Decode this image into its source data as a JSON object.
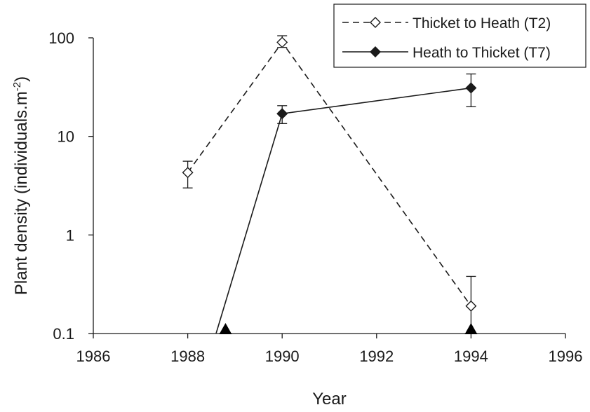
{
  "chart_data": {
    "type": "line",
    "xlabel": "Year",
    "ylabel": "Plant density (individuals.m",
    "ylabel_superscript": "-2",
    "ylabel_close": ")",
    "xlim": [
      1986,
      1996
    ],
    "ylim": [
      0.1,
      100
    ],
    "yscale": "log",
    "x_ticks": [
      "1986",
      "1988",
      "1990",
      "1992",
      "1994",
      "1996"
    ],
    "y_ticks": [
      "0.1",
      "1",
      "10",
      "100"
    ],
    "grid": false,
    "legend_position": "top-right",
    "series": [
      {
        "name": "Thicket to Heath (T2)",
        "line_style": "dashed",
        "marker": "open-diamond",
        "color": "#1a1a1a",
        "points": [
          {
            "x": 1988,
            "y": 4.3,
            "err_low": 3.0,
            "err_high": 5.6
          },
          {
            "x": 1990,
            "y": 90,
            "err_low": 80,
            "err_high": 105
          },
          {
            "x": 1994,
            "y": 0.19,
            "err_low": 0.1,
            "err_high": 0.38
          }
        ]
      },
      {
        "name": "Heath to Thicket (T7)",
        "line_style": "solid",
        "marker": "filled-diamond",
        "color": "#1a1a1a",
        "line_start": {
          "x": 1988.6,
          "y": 0.1
        },
        "points": [
          {
            "x": 1990,
            "y": 17,
            "err_low": 13.5,
            "err_high": 20.5
          },
          {
            "x": 1994,
            "y": 31,
            "err_low": 20,
            "err_high": 43
          }
        ]
      }
    ],
    "annotations": [
      {
        "marker": "filled-triangle",
        "x": 1988.8,
        "y": 0.1
      },
      {
        "marker": "filled-triangle",
        "x": 1994,
        "y": 0.1
      }
    ]
  }
}
